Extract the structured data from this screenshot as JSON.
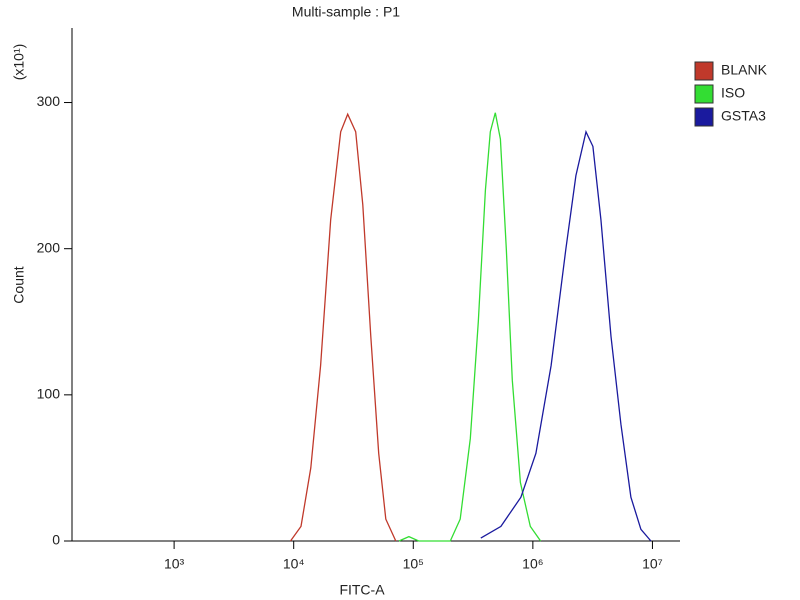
{
  "chart_data": {
    "type": "line",
    "title": "Multi-sample : P1",
    "x_label": "FITC-A",
    "y_label": "Count",
    "y_multiplier": "(x10¹)",
    "log_x": true,
    "legend": "right",
    "xlim": [
      140,
      17000000
    ],
    "xticks": [
      {
        "value": 1000,
        "label": "10³"
      },
      {
        "value": 10000,
        "label": "10⁴"
      },
      {
        "value": 100000,
        "label": "10⁵"
      },
      {
        "value": 1000000,
        "label": "10⁶"
      },
      {
        "value": 10000000,
        "label": "10⁷"
      }
    ],
    "ylim": [
      0,
      351
    ],
    "yticks": [
      0,
      100,
      200,
      300
    ],
    "series": [
      {
        "name": "BLANK",
        "color": "#c0392b",
        "x": [
          9400,
          11500,
          13900,
          16800,
          20400,
          24700,
          28300,
          33000,
          37800,
          44100,
          51400,
          58900,
          71400
        ],
        "values": [
          0,
          10,
          50,
          120,
          220,
          280,
          292,
          280,
          230,
          140,
          60,
          15,
          0
        ]
      },
      {
        "name": "ISO",
        "color": "#33dd33",
        "x": [
          76000,
          92000,
          111000,
          204000,
          247000,
          300000,
          350000,
          401000,
          441000,
          485000,
          535000,
          600000,
          673000,
          786000,
          952000,
          1160000
        ],
        "values": [
          0,
          3,
          0,
          0,
          15,
          70,
          150,
          240,
          280,
          293,
          275,
          200,
          110,
          40,
          10,
          0
        ]
      },
      {
        "name": "GSTA3",
        "color": "#1a1a9e",
        "x": [
          367000,
          540000,
          794000,
          1060000,
          1420000,
          1890000,
          2290000,
          2780000,
          3180000,
          3710000,
          4500000,
          5450000,
          6610000,
          8010000,
          9710000
        ],
        "values": [
          2,
          10,
          30,
          60,
          120,
          200,
          250,
          280,
          270,
          220,
          140,
          80,
          30,
          8,
          0
        ]
      }
    ]
  }
}
